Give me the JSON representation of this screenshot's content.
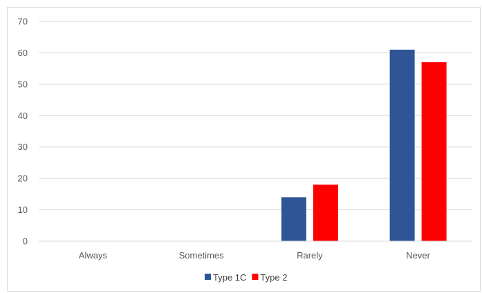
{
  "chart_data": {
    "type": "bar",
    "title": "",
    "xlabel": "",
    "ylabel": "",
    "categories": [
      "Always",
      "Sometimes",
      "Rarely",
      "Never"
    ],
    "series": [
      {
        "name": "Type 1C",
        "color": "#2f5597",
        "values": [
          0,
          0,
          14,
          61
        ]
      },
      {
        "name": "Type 2",
        "color": "#ff0000",
        "values": [
          0,
          0,
          18,
          57
        ]
      }
    ],
    "ylim": [
      0,
      70
    ],
    "yticks": [
      0,
      10,
      20,
      30,
      40,
      50,
      60,
      70
    ],
    "grid": true,
    "legend_position": "bottom"
  }
}
